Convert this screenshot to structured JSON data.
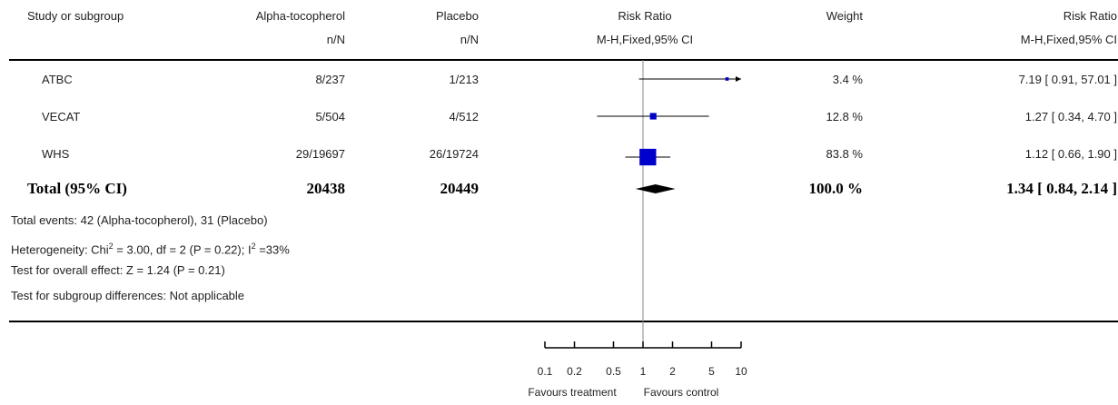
{
  "header": {
    "study_label": "Study or subgroup",
    "treatment_label": "Alpha-tocopherol",
    "control_label": "Placebo",
    "treatment_sub": "n/N",
    "control_sub": "n/N",
    "plot_label": "Risk Ratio",
    "plot_sub": "M-H,Fixed,95% CI",
    "weight_label": "Weight",
    "ratio_label": "Risk Ratio",
    "ratio_sub": "M-H,Fixed,95% CI"
  },
  "studies": [
    {
      "name": "ATBC",
      "treatment": "8/237",
      "control": "1/213",
      "weight": "3.4 %",
      "ci_text": "7.19 [ 0.91, 57.01 ]"
    },
    {
      "name": "VECAT",
      "treatment": "5/504",
      "control": "4/512",
      "weight": "12.8 %",
      "ci_text": "1.27 [ 0.34, 4.70 ]"
    },
    {
      "name": "WHS",
      "treatment": "29/19697",
      "control": "26/19724",
      "weight": "83.8 %",
      "ci_text": "1.12 [ 0.66, 1.90 ]"
    }
  ],
  "total": {
    "name": "Total (95% CI)",
    "treatment": "20438",
    "control": "20449",
    "weight": "100.0 %",
    "ci_text": "1.34 [ 0.84, 2.14 ]"
  },
  "notes": {
    "events": "Total events: 42 (Alpha-tocopherol), 31 (Placebo)",
    "heterogeneity_pre": "Heterogeneity: Chi",
    "heterogeneity_mid": " = 3.00, df = 2 (P = 0.22); I",
    "heterogeneity_post": " =33%",
    "sup": "2",
    "overall": "Test for overall effect: Z = 1.24 (P = 0.21)",
    "subgroup": "Test for subgroup differences: Not applicable"
  },
  "axis": {
    "favours_left": "Favours treatment",
    "favours_right": "Favours control"
  },
  "colors": {
    "marker": "#0000cc",
    "diamond": "#000000"
  },
  "chart_data": {
    "type": "forest",
    "scale": "log",
    "xlim": [
      0.1,
      10
    ],
    "ticks": [
      0.1,
      0.2,
      0.5,
      1,
      2,
      5,
      10
    ],
    "tick_labels": [
      "0.1",
      "0.2",
      "0.5",
      "1",
      "2",
      "5",
      "10"
    ],
    "reference_line": 1,
    "studies": [
      {
        "name": "ATBC",
        "rr": 7.19,
        "lower": 0.91,
        "upper": 57.01,
        "weight": 3.4
      },
      {
        "name": "VECAT",
        "rr": 1.27,
        "lower": 0.34,
        "upper": 4.7,
        "weight": 12.8
      },
      {
        "name": "WHS",
        "rr": 1.12,
        "lower": 0.66,
        "upper": 1.9,
        "weight": 83.8
      }
    ],
    "pooled": {
      "rr": 1.34,
      "lower": 0.84,
      "upper": 2.14
    }
  }
}
